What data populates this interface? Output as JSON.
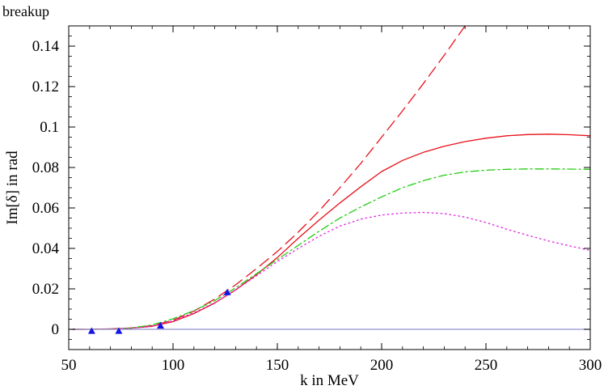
{
  "chart_data": {
    "type": "line",
    "title": "breakup",
    "xlabel": "k in MeV",
    "ylabel": "Im[δ] in rad",
    "xlim": [
      50,
      300
    ],
    "ylim": [
      -0.01,
      0.15
    ],
    "xticks": [
      50,
      100,
      150,
      200,
      250,
      300
    ],
    "xtick_labels": [
      "50",
      "100",
      "150",
      "200",
      "250",
      "300"
    ],
    "yticks": [
      0,
      0.02,
      0.04,
      0.06,
      0.08,
      0.1,
      0.12,
      0.14
    ],
    "ytick_labels": [
      "0",
      "0.02",
      "0.04",
      "0.06",
      "0.08",
      "0.1",
      "0.12",
      "0.14"
    ],
    "grid": false,
    "legend": "none",
    "series": [
      {
        "style": "dashed",
        "color": "#e8101a",
        "x": [
          52,
          60,
          70,
          80,
          90,
          100,
          110,
          120,
          130,
          140,
          150,
          160,
          170,
          180,
          190,
          200,
          210,
          220,
          230,
          240,
          245
        ],
        "y": [
          0,
          0,
          0.0002,
          0.0007,
          0.0018,
          0.0045,
          0.009,
          0.015,
          0.022,
          0.03,
          0.0385,
          0.048,
          0.0585,
          0.07,
          0.082,
          0.095,
          0.108,
          0.1215,
          0.1355,
          0.15,
          0.1575
        ]
      },
      {
        "style": "solid",
        "color": "#e8101a",
        "x": [
          52,
          60,
          70,
          80,
          90,
          100,
          110,
          120,
          130,
          140,
          150,
          160,
          170,
          180,
          190,
          200,
          210,
          220,
          230,
          240,
          250,
          260,
          270,
          280,
          290,
          300
        ],
        "y": [
          0,
          0,
          0.0002,
          0.0006,
          0.0015,
          0.0038,
          0.0078,
          0.013,
          0.0195,
          0.027,
          0.0355,
          0.045,
          0.054,
          0.0625,
          0.0705,
          0.078,
          0.0835,
          0.0875,
          0.0905,
          0.0928,
          0.0945,
          0.0957,
          0.0963,
          0.0965,
          0.0962,
          0.0957
        ]
      },
      {
        "style": "dash-dot",
        "color": "#22cc11",
        "x": [
          52,
          60,
          70,
          80,
          90,
          100,
          110,
          120,
          130,
          140,
          150,
          160,
          170,
          180,
          190,
          200,
          210,
          220,
          230,
          240,
          250,
          260,
          270,
          280,
          290,
          300
        ],
        "y": [
          0,
          0,
          0.0001,
          0.0006,
          0.0022,
          0.0052,
          0.0092,
          0.0142,
          0.0205,
          0.0275,
          0.0345,
          0.0415,
          0.0485,
          0.055,
          0.0605,
          0.0655,
          0.07,
          0.0735,
          0.0762,
          0.0778,
          0.0787,
          0.0791,
          0.0793,
          0.0793,
          0.0792,
          0.0791
        ]
      },
      {
        "style": "dotted",
        "color": "#e020e0",
        "x": [
          52,
          60,
          70,
          80,
          90,
          100,
          110,
          120,
          130,
          140,
          150,
          160,
          170,
          180,
          190,
          200,
          210,
          220,
          230,
          240,
          250,
          260,
          270,
          280,
          290,
          300
        ],
        "y": [
          0,
          0,
          0.0001,
          0.0005,
          0.0016,
          0.0042,
          0.0082,
          0.0132,
          0.0195,
          0.0265,
          0.0335,
          0.04,
          0.046,
          0.051,
          0.0545,
          0.0565,
          0.0575,
          0.0578,
          0.0572,
          0.0555,
          0.0528,
          0.0495,
          0.0465,
          0.0437,
          0.0413,
          0.039
        ]
      },
      {
        "style": "solid",
        "color": "#9090d0",
        "x": [
          50,
          300
        ],
        "y": [
          0,
          0
        ]
      }
    ],
    "points": {
      "marker": "triangle",
      "color": "#1414e6",
      "x": [
        61,
        74,
        94,
        126
      ],
      "y": [
        -0.0008,
        -0.0008,
        0.0018,
        0.0183
      ]
    }
  }
}
